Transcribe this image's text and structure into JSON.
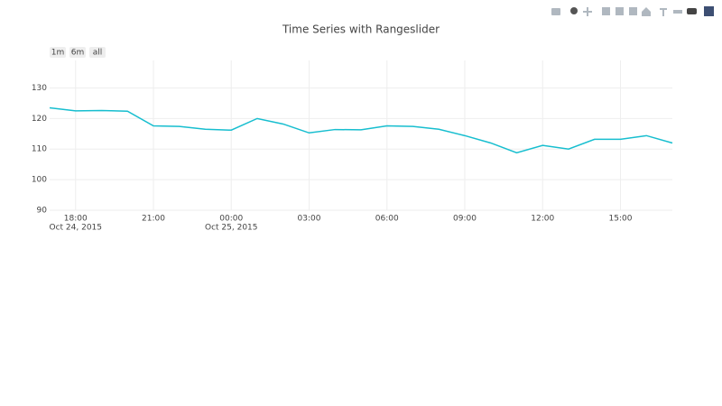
{
  "chart_data": {
    "type": "line",
    "title": "Time Series with Rangeslider",
    "range_buttons": [
      "1m",
      "6m",
      "all"
    ],
    "x": [
      "2015-10-24 17:00",
      "2015-10-24 18:00",
      "2015-10-24 19:00",
      "2015-10-24 20:00",
      "2015-10-24 21:00",
      "2015-10-24 22:00",
      "2015-10-24 23:00",
      "2015-10-25 00:00",
      "2015-10-25 01:00",
      "2015-10-25 02:00",
      "2015-10-25 03:00",
      "2015-10-25 04:00",
      "2015-10-25 05:00",
      "2015-10-25 06:00",
      "2015-10-25 07:00",
      "2015-10-25 08:00",
      "2015-10-25 09:00",
      "2015-10-25 10:00",
      "2015-10-25 11:00",
      "2015-10-25 12:00",
      "2015-10-25 13:00",
      "2015-10-25 14:00",
      "2015-10-25 15:00",
      "2015-10-25 16:00",
      "2015-10-25 17:00"
    ],
    "series": [
      {
        "color": "#17becf",
        "values": [
          123.5,
          122.5,
          122.6,
          122.4,
          117.6,
          117.4,
          116.5,
          116.2,
          120,
          118.2,
          115.3,
          116.4,
          116.3,
          117.6,
          117.4,
          116.5,
          114.4,
          112,
          108.8,
          111.2,
          110,
          113.2,
          113.2,
          114.4,
          112
        ]
      }
    ],
    "xlim": [
      "2015-10-24 17:00",
      "2015-10-25 17:00"
    ],
    "xticks": [
      {
        "value": "2015-10-24 18:00",
        "label": "18:00",
        "sublabel": "Oct 24, 2015"
      },
      {
        "value": "2015-10-24 21:00",
        "label": "21:00"
      },
      {
        "value": "2015-10-25 00:00",
        "label": "00:00",
        "sublabel": "Oct 25, 2015"
      },
      {
        "value": "2015-10-25 03:00",
        "label": "03:00"
      },
      {
        "value": "2015-10-25 06:00",
        "label": "06:00"
      },
      {
        "value": "2015-10-25 09:00",
        "label": "09:00"
      },
      {
        "value": "2015-10-25 12:00",
        "label": "12:00"
      },
      {
        "value": "2015-10-25 15:00",
        "label": "15:00"
      }
    ],
    "ylim": [
      90,
      139
    ],
    "yticks": [
      90,
      100,
      110,
      120,
      130
    ],
    "grid": true
  }
}
